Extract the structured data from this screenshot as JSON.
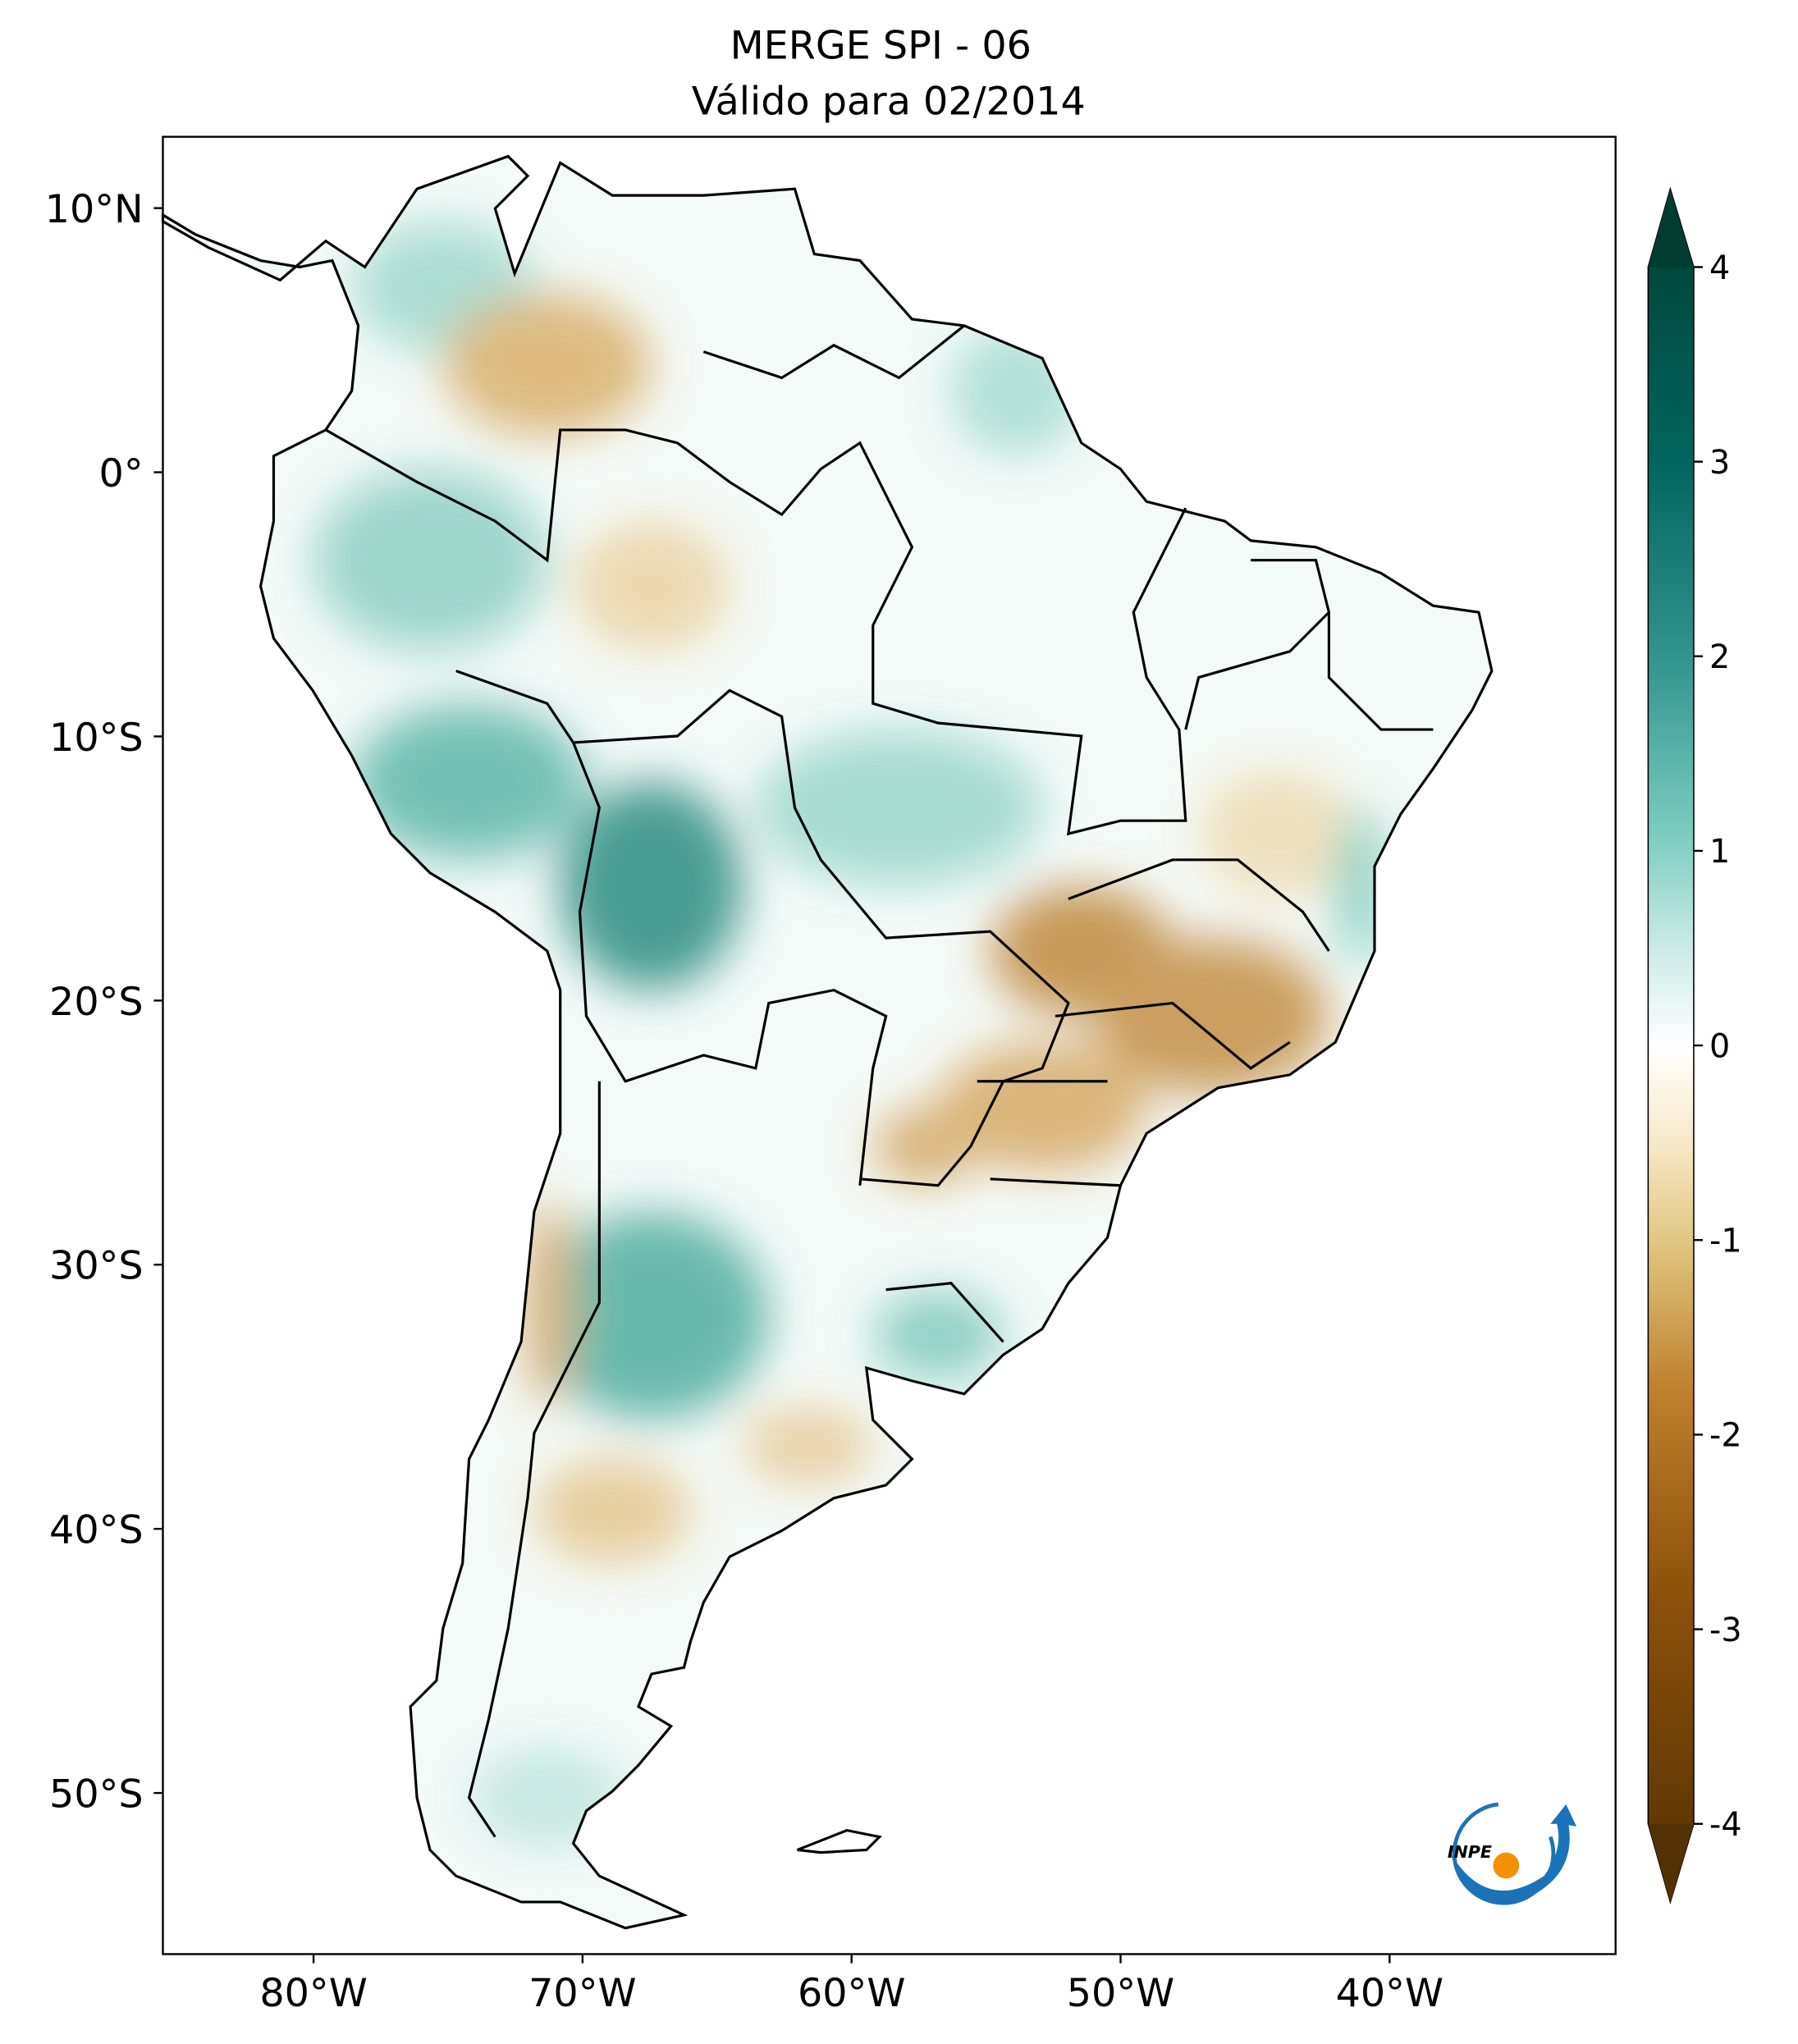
{
  "map": {
    "title": "MERGE   SPI - 06",
    "subtitle": "Válido para 02/2014",
    "xlim": [
      -85.6,
      -31.6
    ],
    "ylim": [
      -56.1,
      12.7
    ],
    "xticks": [
      {
        "value": -80,
        "label": "80°W"
      },
      {
        "value": -70,
        "label": "70°W"
      },
      {
        "value": -60,
        "label": "60°W"
      },
      {
        "value": -50,
        "label": "50°W"
      },
      {
        "value": -40,
        "label": "40°W"
      }
    ],
    "yticks": [
      {
        "value": 10,
        "label": "10°N"
      },
      {
        "value": 0,
        "label": "0°"
      },
      {
        "value": -10,
        "label": "10°S"
      },
      {
        "value": -20,
        "label": "20°S"
      },
      {
        "value": -30,
        "label": "30°S"
      },
      {
        "value": -40,
        "label": "40°S"
      },
      {
        "value": -50,
        "label": "50°S"
      }
    ],
    "colorbar": {
      "lim": [
        -4,
        4
      ],
      "ticks": [
        4,
        3,
        2,
        1,
        0,
        -1,
        -2,
        -3,
        -4
      ]
    },
    "logo_text": "INPE"
  }
}
